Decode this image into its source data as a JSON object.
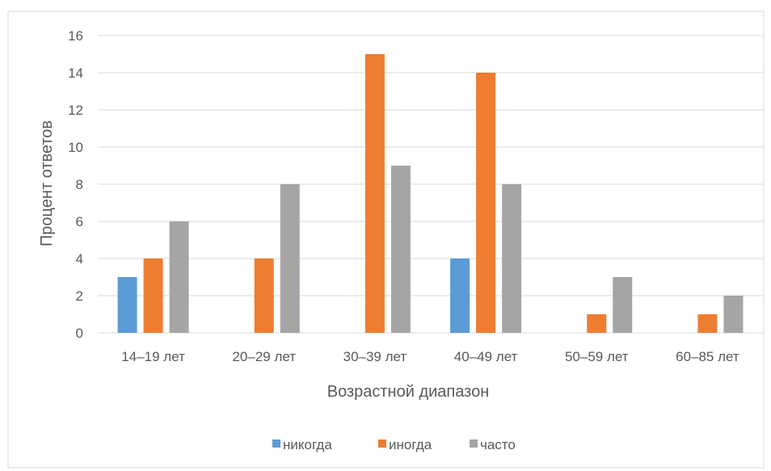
{
  "chart_data": {
    "type": "bar",
    "title": "",
    "xlabel": "Возрастной диапазон",
    "ylabel": "Процент ответов",
    "categories": [
      "14–19 лет",
      "20–29 лет",
      "30–39 лет",
      "40–49 лет",
      "50–59 лет",
      "60–85 лет"
    ],
    "series": [
      {
        "name": "никогда",
        "color": "#5B9BD5",
        "values": [
          3,
          0,
          0,
          4,
          0,
          0
        ]
      },
      {
        "name": "иногда",
        "color": "#ED7D31",
        "values": [
          4,
          4,
          15,
          14,
          1,
          1
        ]
      },
      {
        "name": "часто",
        "color": "#A5A5A5",
        "values": [
          6,
          8,
          9,
          8,
          3,
          2
        ]
      }
    ],
    "ylim": [
      0,
      16
    ],
    "yticks": [
      "0",
      "2",
      "4",
      "6",
      "8",
      "10",
      "12",
      "14",
      "16"
    ],
    "grid": true,
    "legend_position": "bottom",
    "border_color": "#D9D9D9",
    "grid_color": "#D9D9D9"
  }
}
